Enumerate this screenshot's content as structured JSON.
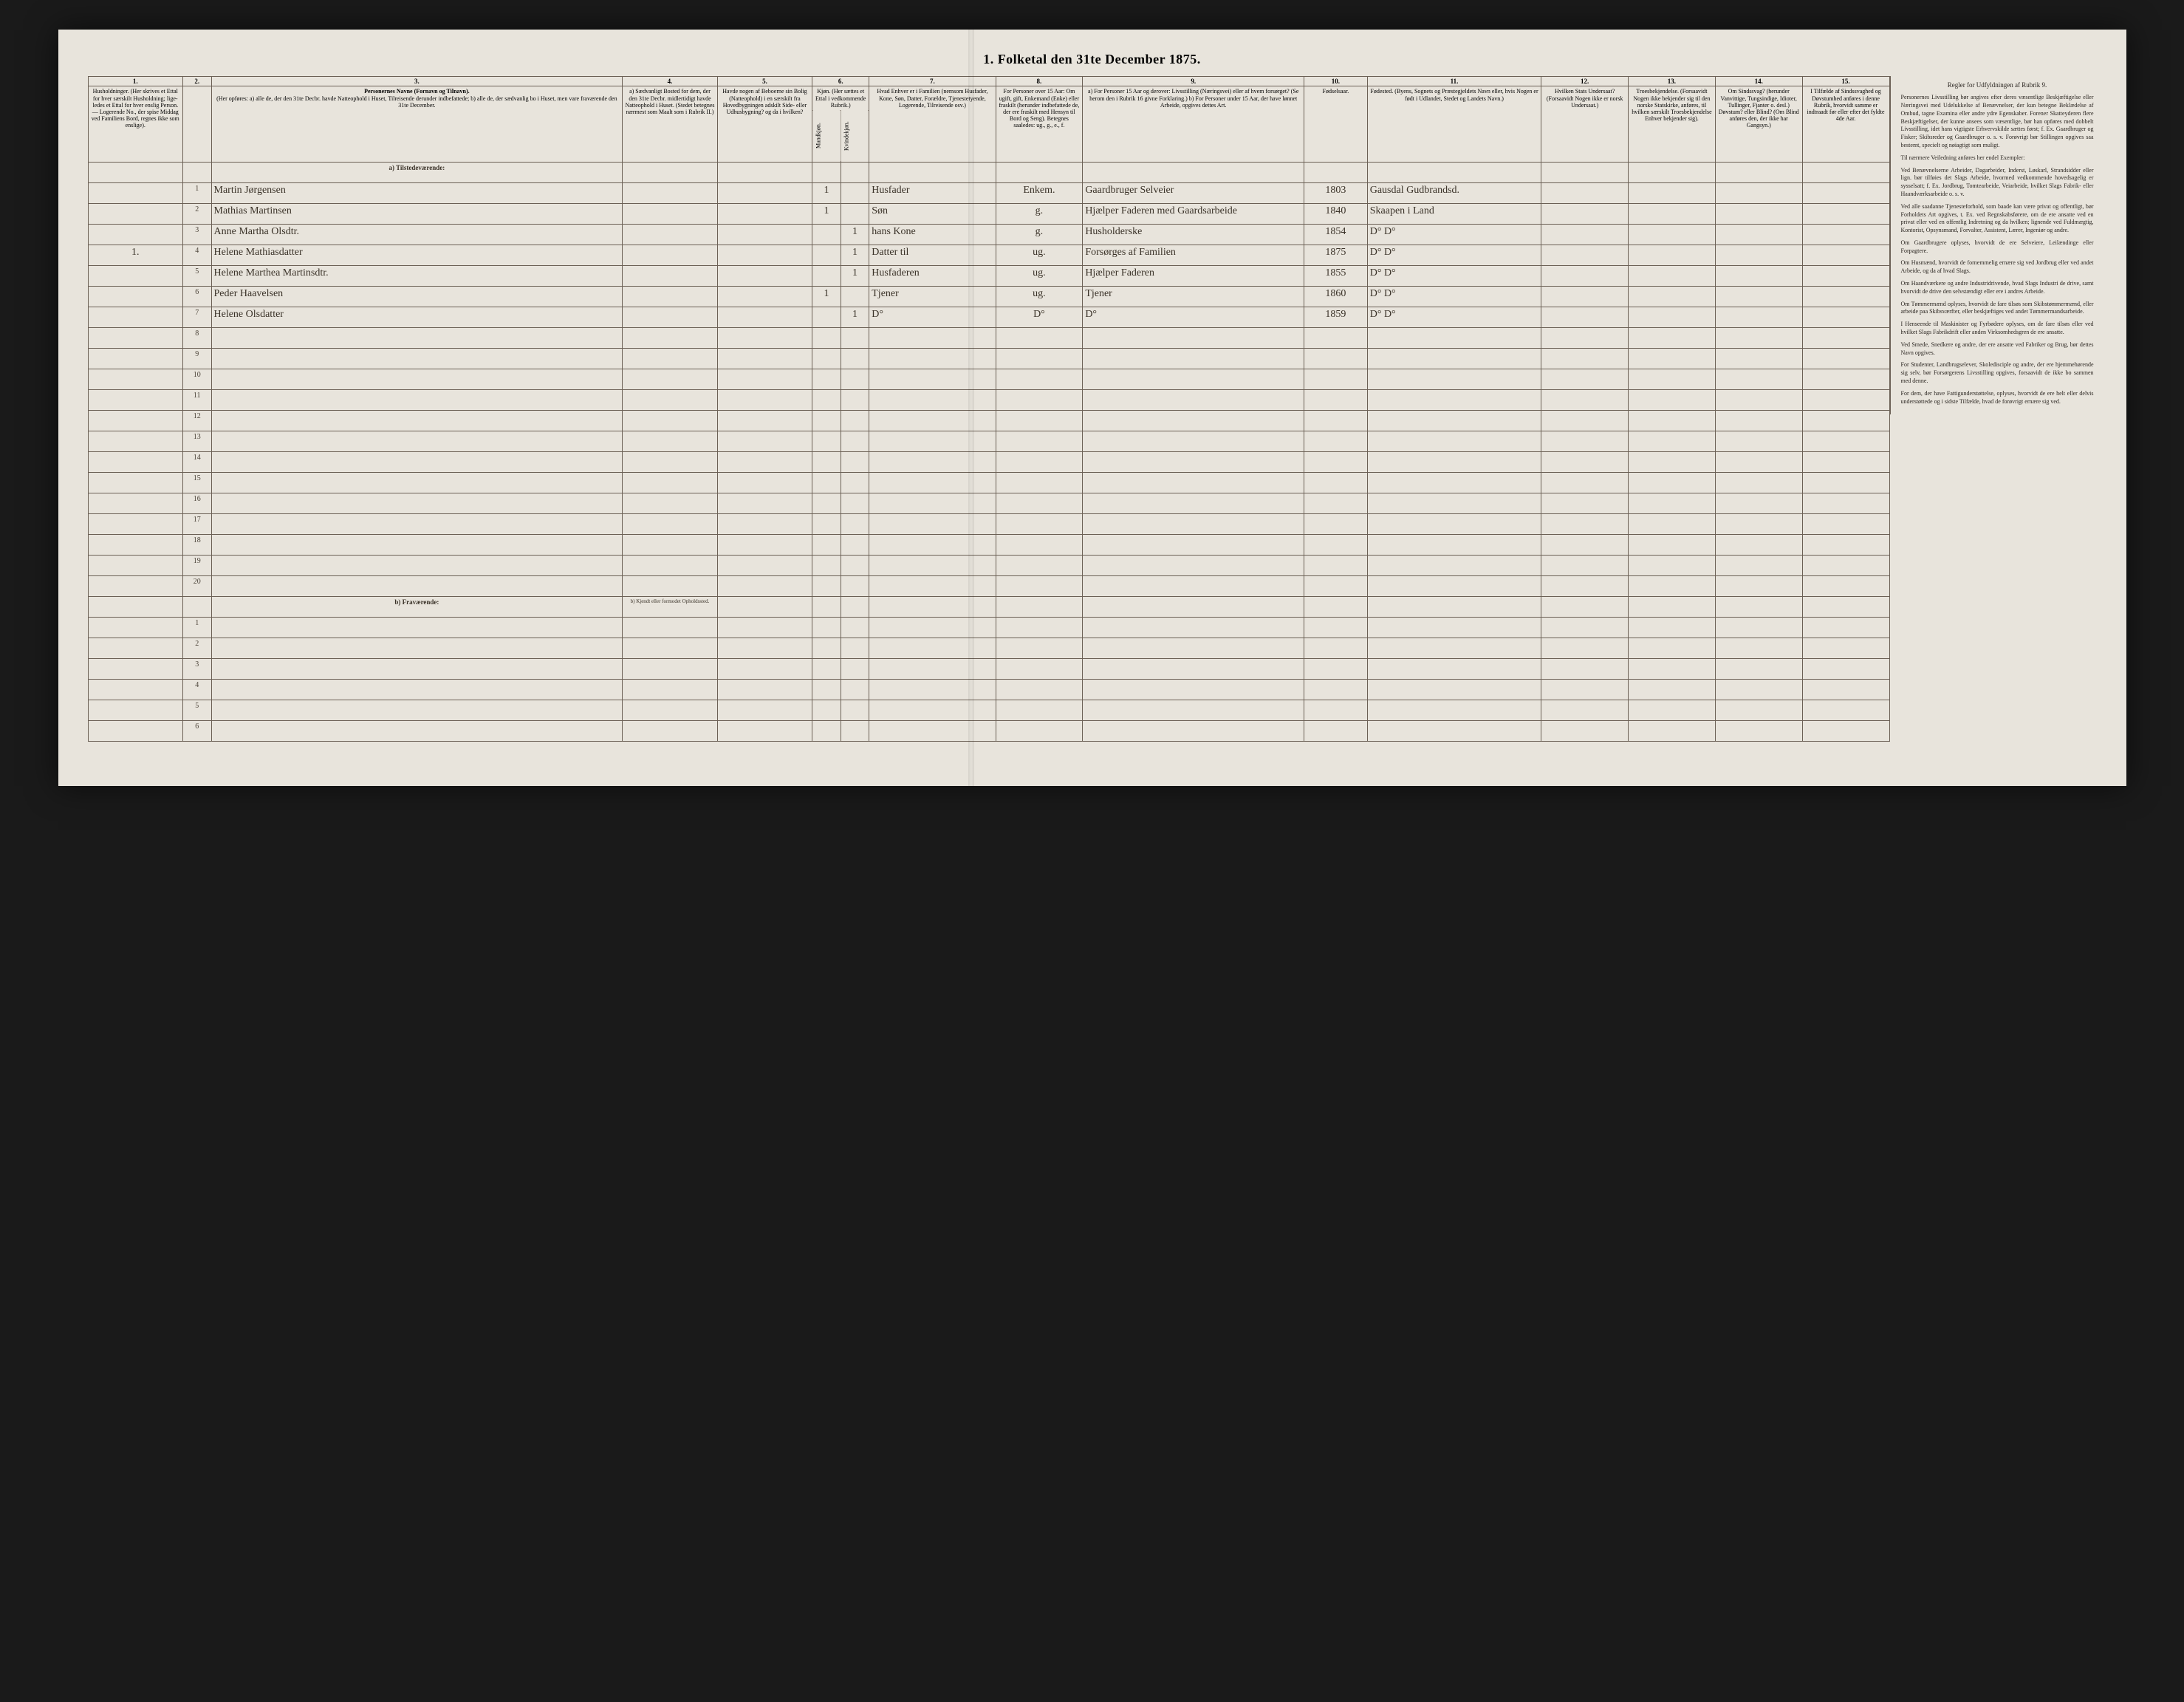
{
  "title": "1. Folketal den 31te December 1875.",
  "columns": {
    "nums": [
      "1.",
      "2.",
      "3.",
      "4.",
      "5.",
      "6.",
      "7.",
      "8.",
      "9.",
      "10.",
      "11.",
      "12.",
      "13.",
      "14.",
      "15."
    ],
    "h1": "Husholdninger. (Her skrives et Ettal for hver særskilt Husholdning; lige-ledes et Ettal for hver enslig Person. — Logerende No., der spise Middag ved Familiens Bord, regnes ikke som enslige).",
    "h2": "",
    "h3_title": "Personernes Navne (Fornavn og Tilnavn).",
    "h3_sub": "(Her opføres:\na) alle de, der den 31te Decbr. havde Natteophold i Huset, Tilreisende derunder indbefattede;\nb) alle de, der sædvanlig bo i Huset, men vare fraværende den 31te December.",
    "h4": "a) Sædvanligt Bosted for dem, der den 31te Decbr. midlertidigt havde Natteophold i Huset. (Stedet betegnes nærmest som Maalt som i Rubrik II.)",
    "h5": "Havde nogen af Beboerne sin Bolig (Natteophold) i en særskilt fra Hovedbygningen adskilt Side- eller Udhusbygning? og da i hvilken?",
    "h6": "Kjøn. (Her sættes et Ettal i vedkommende Rubrik.)",
    "h6m": "Mandkjøn.",
    "h6k": "Kvindekjøn.",
    "h7": "Hvad Enhver er i Familien (nemsom Husfader, Kone, Søn, Datter, Forældre, Tjenestetyende, Logerende, Tilreisende osv.)",
    "h8": "For Personer over 15 Aar: Om ugift, gift, Enkemand (Enke) eller fraskilt (herunder indbefattede de, der ere fraskilt med Hensyn til Bord og Seng). Betegnes saaledes: ug., g., e., f.",
    "h9": "a) For Personer 15 Aar og derover: Livsstilling (Næringsvei) eller af hvem forsørget? (Se herom den i Rubrik 16 givne Forklaring.)\nb) For Personer under 15 Aar, der have lønnet Arbeide, opgives dettes Art.",
    "h10": "Fødselsaar.",
    "h11": "Fødested. (Byens, Sognets og Præstegjeldets Navn eller, hvis Nogen er født i Udlandet, Stedet og Landets Navn.)",
    "h12": "Hvilken Stats Undersaat? (Forsaavidt Nogen ikke er norsk Undersaat.)",
    "h13": "Troesbekjendelse. (Forsaavidt Nogen ikke bekjender sig til den norske Statskirke, anføres, til hvilken særskilt Troesbekjendelse Enhver bekjender sig).",
    "h14": "Om Sindssvag? (herunder Vanvittige, Tungsindige, Idioter, Tullinger, Fjanter o. desl.) Døvstum? eller Blind? (Om Blind anføres den, der ikke har Gangsyn.)",
    "h15": "I Tilfælde af Sindssvaghed og Døvstumhed anføres i denne Rubrik, hvorvidt samme er indtraadt før eller efter det fyldte 4de Aar."
  },
  "sections": {
    "a": "a) Tilstedeværende:",
    "b": "b) Fraværende:",
    "b4": "b) Kjendt eller formodet Opholdssted."
  },
  "rows": [
    {
      "n": "1",
      "hush": "",
      "name": "Martin Jørgensen",
      "kjm": "1",
      "kjk": "",
      "fam": "Husfader",
      "civ": "Enkem.",
      "occ": "Gaardbruger Selveier",
      "aar": "1803",
      "fst": "Gausdal Gudbrandsd."
    },
    {
      "n": "2",
      "hush": "",
      "name": "Mathias Martinsen",
      "kjm": "1",
      "kjk": "",
      "fam": "Søn",
      "civ": "g.",
      "occ": "Hjælper Faderen med Gaardsarbeide",
      "aar": "1840",
      "fst": "Skaapen i Land"
    },
    {
      "n": "3",
      "hush": "",
      "name": "Anne Martha Olsdtr.",
      "kjm": "",
      "kjk": "1",
      "fam": "hans Kone",
      "civ": "g.",
      "occ": "Husholderske",
      "aar": "1854",
      "fst": "D°  D°"
    },
    {
      "n": "4",
      "hush": "1.",
      "name": "Helene Mathiasdatter",
      "kjm": "",
      "kjk": "1",
      "fam": "Datter til",
      "civ": "ug.",
      "occ": "Forsørges af Familien",
      "aar": "1875",
      "fst": "D°  D°"
    },
    {
      "n": "5",
      "hush": "",
      "name": "Helene Marthea Martinsdtr.",
      "kjm": "",
      "kjk": "1",
      "fam": "Husfaderen",
      "civ": "ug.",
      "occ": "Hjælper Faderen",
      "aar": "1855",
      "fst": "D°  D°"
    },
    {
      "n": "6",
      "hush": "",
      "name": "Peder Haavelsen",
      "kjm": "1",
      "kjk": "",
      "fam": "Tjener",
      "civ": "ug.",
      "occ": "Tjener",
      "aar": "1860",
      "fst": "D°  D°"
    },
    {
      "n": "7",
      "hush": "",
      "name": "Helene Olsdatter",
      "kjm": "",
      "kjk": "1",
      "fam": "D°",
      "civ": "D°",
      "occ": "D°",
      "aar": "1859",
      "fst": "D°  D°"
    }
  ],
  "blank_a": [
    "8",
    "9",
    "10",
    "11",
    "12",
    "13",
    "14",
    "15",
    "16",
    "17",
    "18",
    "19",
    "20"
  ],
  "blank_b": [
    "1",
    "2",
    "3",
    "4",
    "5",
    "6"
  ],
  "instructions": {
    "header": "Regler for Udfyldningen\naf\nRubrik 9.",
    "paras": [
      "Personernes Livsstilling bør angives efter deres væsentlige Beskjæftigelse eller Næringsvei med Udelukkelse af Benævnelser, der kun betegne Beklædelse af Ombud, tagne Examina eller andre ydre Egenskaber. Forener Skatteyderen flere Beskjæftigelser, der kunne ansees som væsentlige, bør han opføres med dobbelt Livsstilling, idet hans vigtigste Erhvervskilde sættes først; f. Ex. Gaardbruger og Fisker; Skibsreder og Gaardbruger o. s. v. Forøvrigt bør Stillingen opgives saa bestemt, specielt og nøiagtigt som muligt.",
      "Til nærmere Veiledning anføres her endel Exempler:",
      "Ved Benævnelserne Arbeider, Dagarbeider, Inderst, Løskarl, Strandsidder eller lign. bør tilføies det Slags Arbeide, hvormed vedkommende hovedsagelig er sysselsatt; f. Ex. Jordbrug, Tomtearbeide, Veiarbeide, hvilket Slags Fabrik- eller Haandværksarbeide o. s. v.",
      "Ved alle saadanne Tjenesteforhold, som baade kan være privat og offentligt, bør Forholdets Art opgives, t. Ex. ved Regnskabsførere, om de ere ansatte ved en privat eller ved en offentlig Indretning og da hvilken; lignende ved Fuldmægtig, Kontorist, Opsynsmand, Forvalter, Assistent, Lærer, Ingeniør og andre.",
      "Om Gaardbrugere oplyses, hvorvidt de ere Selveiere, Leilændinge eller Forpagtere.",
      "Om Husmænd, hvorvidt de fornemmelig ernære sig ved Jordbrug eller ved andet Arbeide, og da af hvad Slags.",
      "Om Haandværkere og andre Industridrivende, hvad Slags Industri de drive, samt hvorvidt de drive den selvstændigt eller ere i andres Arbeide.",
      "Om Tømmermænd oplyses, hvorvidt de fare tilsøs som Skibstømmermænd, eller arbeide paa Skibsværfter, eller beskjæftiges ved andet Tømmermandsarbeide.",
      "I Henseende til Maskinister og Fyrbødere oplyses, om de fare tilsøs eller ved hvilket Slags Fabrikdrift eller anden Virksomhedsgren de ere ansatte.",
      "Ved Smede, Snedkere og andre, der ere ansatte ved Fabriker og Brug, bør dettes Navn opgives.",
      "For Studenter, Landbrugselever, Skoledisciple og andre, der ere hjemmehørende sig selv, bør Forsørgerens Livsstilling opgives, forsaavidt de ikke bo sammen med denne.",
      "For dem, der have Fattigunderstøttelse, oplyses, hvorvidt de ere helt eller delvis understøttede og i sidste Tilfælde, hvad de forøvrigt ernære sig ved."
    ]
  }
}
